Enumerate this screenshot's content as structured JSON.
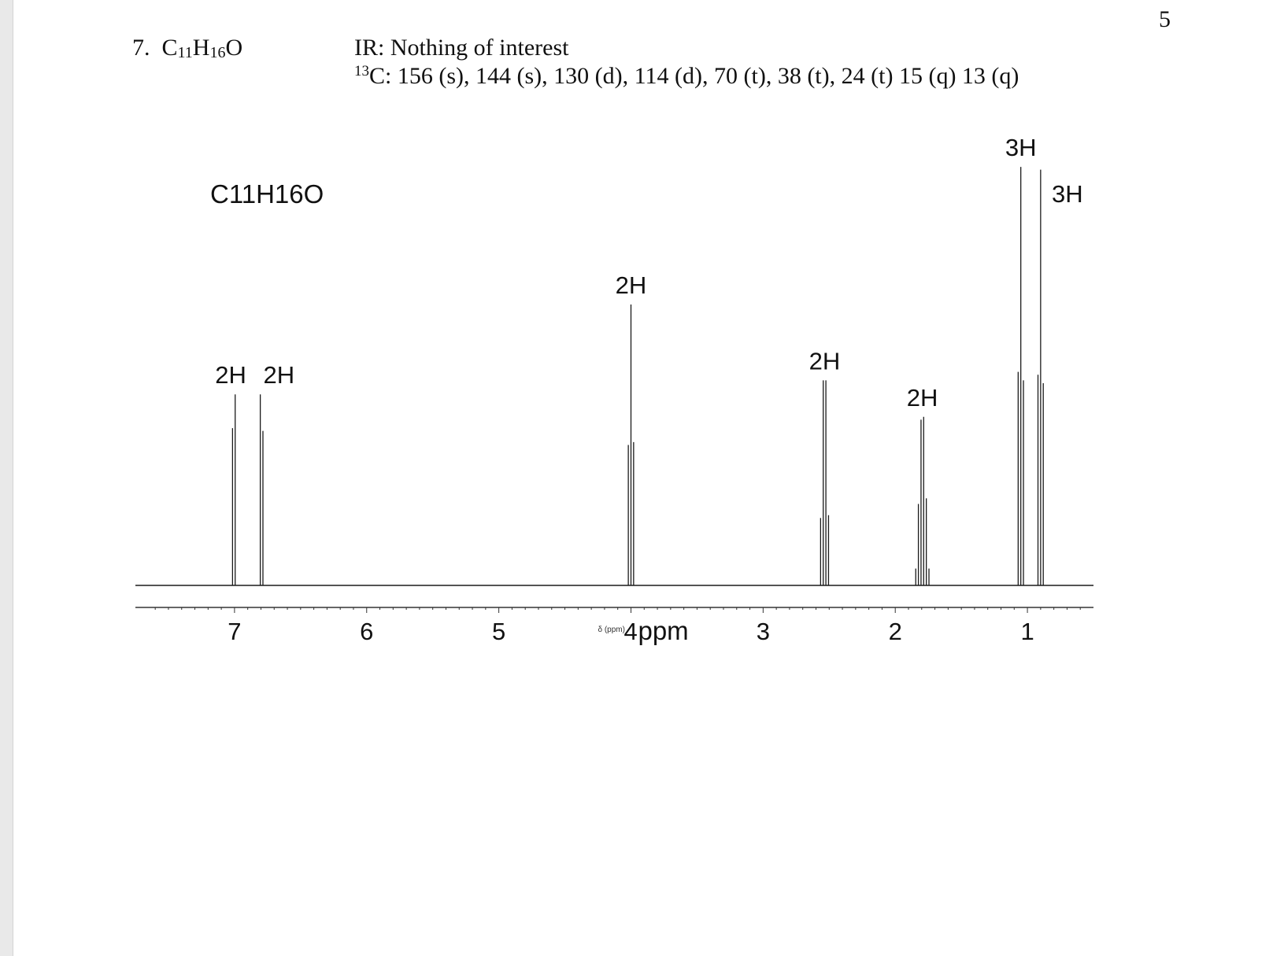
{
  "page_number": "5",
  "problem": {
    "number": "7.",
    "formula_parts": [
      {
        "text": "C",
        "sub": false
      },
      {
        "text": "11",
        "sub": true
      },
      {
        "text": "H",
        "sub": false
      },
      {
        "text": "16",
        "sub": true
      },
      {
        "text": "O",
        "sub": false
      }
    ],
    "ir": "IR:  Nothing of interest",
    "c13_isotope": "13",
    "c13_text": "C:  156 (s), 144 (s), 130 (d), 114 (d), 70 (t), 38 (t), 24 (t) 15 (q) 13 (q)"
  },
  "chart_data": {
    "type": "line",
    "title": "C11H16O",
    "xlabel": "ppm",
    "x_axis_small_label": "δ (ppm)",
    "x_reversed": true,
    "xlim": [
      7.75,
      0.5
    ],
    "x_ticks": [
      7,
      6,
      5,
      4,
      3,
      2,
      1
    ],
    "x_tick_labels": [
      "7",
      "6",
      "5",
      "4",
      "3",
      "2",
      "1"
    ],
    "ylim": [
      0,
      1.0
    ],
    "grid": false,
    "legend": "none",
    "colors": {
      "line": "#1a1a1a",
      "axis": "#333333"
    },
    "signals": [
      {
        "integration": "2H",
        "lines": [
          {
            "ppm": 7.015,
            "height": 0.56
          },
          {
            "ppm": 6.995,
            "height": 0.68
          }
        ]
      },
      {
        "integration": "2H",
        "lines": [
          {
            "ppm": 6.805,
            "height": 0.68
          },
          {
            "ppm": 6.785,
            "height": 0.55
          }
        ]
      },
      {
        "integration": "2H",
        "lines": [
          {
            "ppm": 4.02,
            "height": 0.5
          },
          {
            "ppm": 4.0,
            "height": 1.0
          },
          {
            "ppm": 3.98,
            "height": 0.51
          }
        ]
      },
      {
        "integration": "2H",
        "lines": [
          {
            "ppm": 2.565,
            "height": 0.24
          },
          {
            "ppm": 2.545,
            "height": 0.73
          },
          {
            "ppm": 2.525,
            "height": 0.73
          },
          {
            "ppm": 2.505,
            "height": 0.25
          }
        ]
      },
      {
        "integration": "2H",
        "lines": [
          {
            "ppm": 1.845,
            "height": 0.06
          },
          {
            "ppm": 1.825,
            "height": 0.29
          },
          {
            "ppm": 1.805,
            "height": 0.59
          },
          {
            "ppm": 1.785,
            "height": 0.6
          },
          {
            "ppm": 1.765,
            "height": 0.31
          },
          {
            "ppm": 1.745,
            "height": 0.06
          }
        ]
      },
      {
        "integration": "3H",
        "lines": [
          {
            "ppm": 1.07,
            "height": 0.76
          },
          {
            "ppm": 1.05,
            "height": 1.49
          },
          {
            "ppm": 1.03,
            "height": 0.73
          }
        ]
      },
      {
        "integration": "3H",
        "lines": [
          {
            "ppm": 0.92,
            "height": 0.75
          },
          {
            "ppm": 0.9,
            "height": 1.48
          },
          {
            "ppm": 0.88,
            "height": 0.72
          }
        ]
      }
    ]
  }
}
